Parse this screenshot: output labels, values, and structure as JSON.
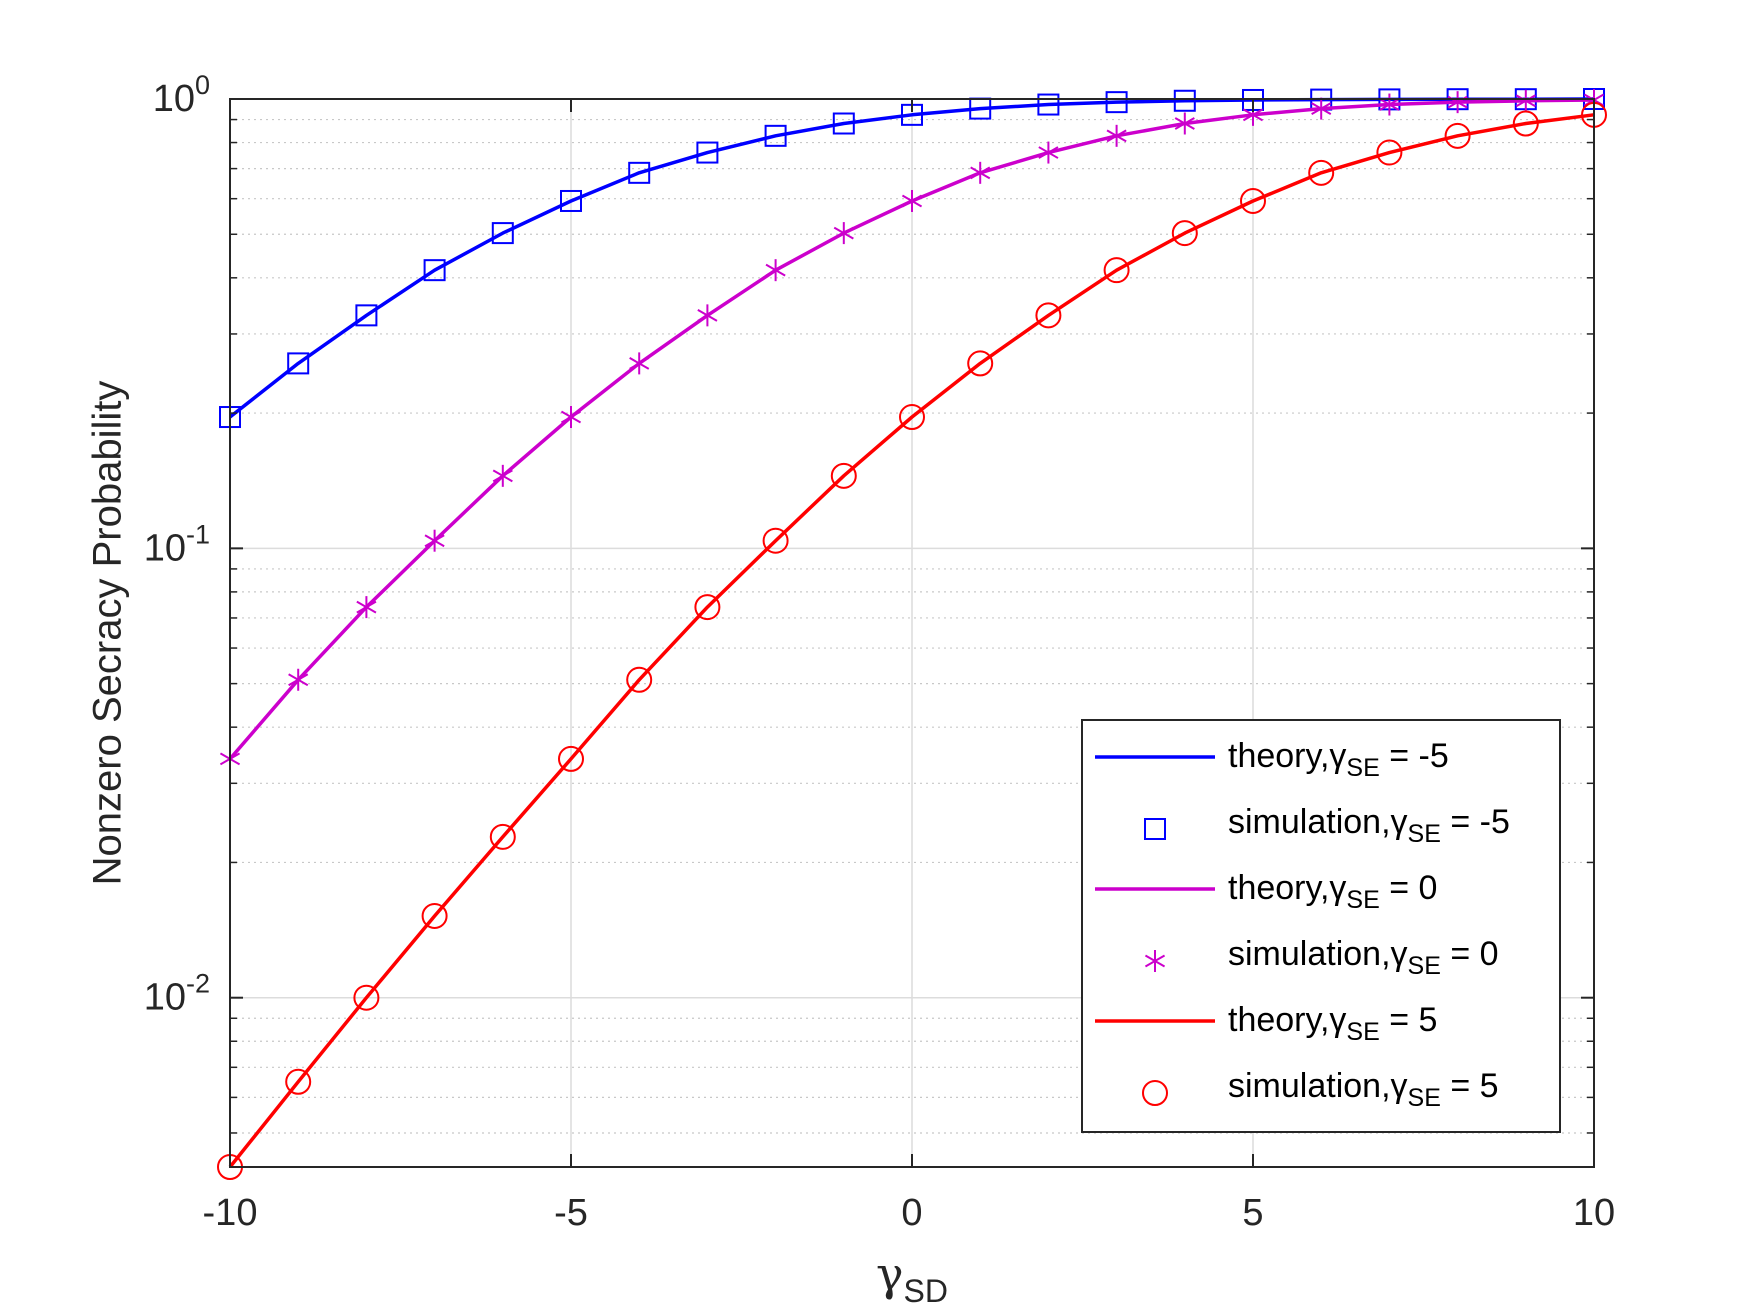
{
  "chart_data": {
    "type": "line",
    "title": "",
    "xlabel": {
      "main": "γ",
      "sub": "SD"
    },
    "ylabel": "Nonzero Secracy Probability",
    "x": [
      -10,
      -9,
      -8,
      -7,
      -6,
      -5,
      -4,
      -3,
      -2,
      -1,
      0,
      1,
      2,
      3,
      4,
      5,
      6,
      7,
      8,
      9,
      10
    ],
    "xlim": [
      -10,
      10
    ],
    "ylim": [
      0.0042,
      1
    ],
    "yscale": "log",
    "grid": true,
    "xticks": [
      {
        "value": -10,
        "label": "-10"
      },
      {
        "value": -5,
        "label": "-5"
      },
      {
        "value": 0,
        "label": "0"
      },
      {
        "value": 5,
        "label": "5"
      },
      {
        "value": 10,
        "label": "10"
      }
    ],
    "yticks": [
      {
        "value": 1,
        "base": "10",
        "exp": "0"
      },
      {
        "value": 0.1,
        "base": "10",
        "exp": "-1"
      },
      {
        "value": 0.01,
        "base": "10",
        "exp": "-2"
      }
    ],
    "legend_position": "bottom-right",
    "series": [
      {
        "name": "theory,γSE = -5",
        "label_main": "theory,γ",
        "label_sub": "SE",
        "label_tail": " = -5",
        "kind": "line",
        "color": "#0000ff",
        "values": [
          0.196,
          0.258,
          0.33,
          0.416,
          0.503,
          0.593,
          0.685,
          0.76,
          0.828,
          0.882,
          0.922,
          0.952,
          0.972,
          0.984,
          0.991,
          0.995,
          0.997,
          0.998,
          0.999,
          0.999,
          1.0
        ]
      },
      {
        "name": "simulation,γSE = -5",
        "label_main": "simulation,γ",
        "label_sub": "SE",
        "label_tail": " = -5",
        "kind": "marker",
        "marker": "square",
        "color": "#0000ff",
        "values": [
          0.196,
          0.258,
          0.33,
          0.416,
          0.503,
          0.593,
          0.685,
          0.76,
          0.828,
          0.882,
          0.922,
          0.952,
          0.972,
          0.984,
          0.991,
          0.995,
          0.997,
          0.998,
          0.999,
          0.999,
          1.0
        ]
      },
      {
        "name": "theory,γSE = 0",
        "label_main": "theory,γ",
        "label_sub": "SE",
        "label_tail": " = 0",
        "kind": "line",
        "color": "#cc00cc",
        "values": [
          0.034,
          0.051,
          0.074,
          0.104,
          0.145,
          0.196,
          0.258,
          0.33,
          0.416,
          0.503,
          0.593,
          0.685,
          0.76,
          0.828,
          0.882,
          0.922,
          0.952,
          0.972,
          0.984,
          0.991,
          0.995
        ]
      },
      {
        "name": "simulation,γSE = 0",
        "label_main": "simulation,γ",
        "label_sub": "SE",
        "label_tail": " = 0",
        "kind": "marker",
        "marker": "asterisk",
        "color": "#cc00cc",
        "values": [
          0.034,
          0.051,
          0.074,
          0.104,
          0.145,
          0.196,
          0.258,
          0.33,
          0.416,
          0.503,
          0.593,
          0.685,
          0.76,
          0.828,
          0.882,
          0.922,
          0.952,
          0.972,
          0.984,
          0.991,
          0.995
        ]
      },
      {
        "name": "theory,γSE = 5",
        "label_main": "theory,γ",
        "label_sub": "SE",
        "label_tail": " = 5",
        "kind": "line",
        "color": "#ff0000",
        "values": [
          0.0042,
          0.0065,
          0.01,
          0.0152,
          0.0228,
          0.034,
          0.051,
          0.074,
          0.104,
          0.145,
          0.196,
          0.258,
          0.33,
          0.416,
          0.503,
          0.593,
          0.685,
          0.76,
          0.828,
          0.882,
          0.922
        ]
      },
      {
        "name": "simulation,γSE = 5",
        "label_main": "simulation,γ",
        "label_sub": "SE",
        "label_tail": " = 5",
        "kind": "marker",
        "marker": "circle",
        "color": "#ff0000",
        "values": [
          0.0042,
          0.0065,
          0.01,
          0.0152,
          0.0228,
          0.034,
          0.051,
          0.074,
          0.104,
          0.145,
          0.196,
          0.258,
          0.33,
          0.416,
          0.503,
          0.593,
          0.685,
          0.76,
          0.828,
          0.882,
          0.922
        ]
      }
    ]
  }
}
